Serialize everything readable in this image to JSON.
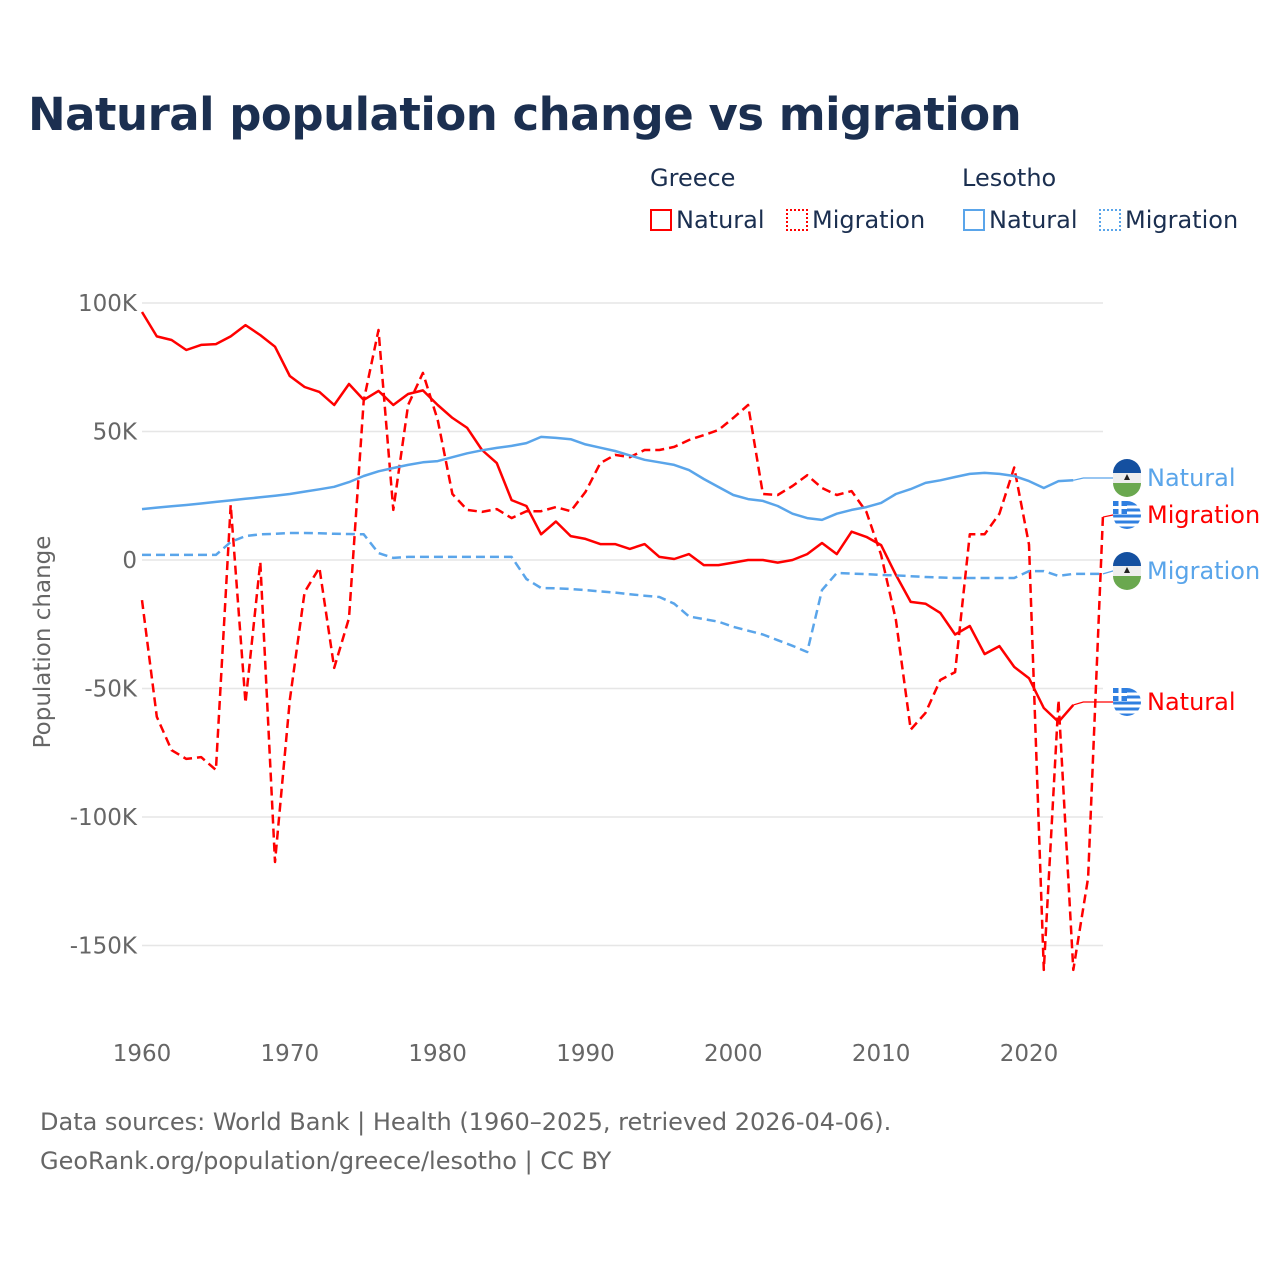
{
  "title": "Natural population change vs migration",
  "legend": {
    "groups": [
      {
        "name": "Greece",
        "items": [
          "Natural",
          "Migration"
        ],
        "color": "#ff0000"
      },
      {
        "name": "Lesotho",
        "items": [
          "Natural",
          "Migration"
        ],
        "color": "#5aa5ea"
      }
    ]
  },
  "footer": {
    "line1": "Data sources: World Bank | Health (1960–2025, retrieved 2026-04-06).",
    "line2": "GeoRank.org/population/greece/lesotho | CC BY"
  },
  "chart_data": {
    "type": "line",
    "title": "Natural population change vs migration",
    "xlabel": "",
    "ylabel": "Population change",
    "xlim": [
      1960,
      2025
    ],
    "ylim": [
      -160000,
      100000
    ],
    "x_ticks": [
      "1960",
      "1970",
      "1980",
      "1990",
      "2000",
      "2010",
      "2020"
    ],
    "y_ticks": [
      {
        "v": 100000,
        "label": "100K"
      },
      {
        "v": 50000,
        "label": "50K"
      },
      {
        "v": 0,
        "label": "0"
      },
      {
        "v": -50000,
        "label": "-50K"
      },
      {
        "v": -100000,
        "label": "-100K"
      },
      {
        "v": -150000,
        "label": "-150K"
      }
    ],
    "grid": true,
    "series": [
      {
        "name": "Greece Natural",
        "label": "Natural",
        "country": "Greece",
        "color": "#ff0000",
        "dashed": false,
        "start": 1960,
        "values": [
          96500,
          87000,
          85600,
          81700,
          83700,
          84000,
          87000,
          91400,
          87500,
          83000,
          71600,
          67300,
          65400,
          60300,
          68500,
          62300,
          65800,
          60300,
          64600,
          66000,
          60300,
          55300,
          51400,
          42800,
          37700,
          23300,
          21000,
          10000,
          15000,
          9300,
          8200,
          6200,
          6200,
          4300,
          6200,
          1200,
          400,
          2300,
          -2000,
          -2000,
          -1000,
          0,
          0,
          -1000,
          0,
          2300,
          6600,
          2300,
          11000,
          9000,
          5800,
          -5800,
          -16300,
          -17000,
          -20600,
          -29000,
          -25700,
          -36600,
          -33500,
          -41600,
          -46000,
          -57600,
          -63000,
          -56400
        ]
      },
      {
        "name": "Greece Migration",
        "label": "Migration",
        "country": "Greece",
        "color": "#ff0000",
        "dashed": true,
        "start": 1960,
        "values": [
          -15600,
          -61000,
          -74000,
          -77400,
          -76700,
          -81700,
          21400,
          -55600,
          -800,
          -117500,
          -54500,
          -12500,
          -3000,
          -42000,
          -22600,
          62000,
          89500,
          19500,
          60300,
          72800,
          54500,
          25700,
          19500,
          18700,
          19800,
          16300,
          19000,
          19000,
          20600,
          19000,
          26500,
          37700,
          40900,
          40000,
          42800,
          42800,
          44000,
          46700,
          48600,
          50600,
          55300,
          60300,
          25700,
          25300,
          28800,
          33000,
          28000,
          25300,
          26800,
          18700,
          2000,
          -23300,
          -66000,
          -59500,
          -46700,
          -43600,
          10000,
          10000,
          18000,
          36000,
          6000,
          -159500,
          -54500,
          -159500,
          -123700,
          16700
        ]
      },
      {
        "name": "Lesotho Natural",
        "label": "Natural",
        "country": "Lesotho",
        "color": "#5aa5ea",
        "dashed": false,
        "start": 1960,
        "values": [
          19800,
          20400,
          20900,
          21400,
          22000,
          22600,
          23200,
          23800,
          24400,
          25000,
          25700,
          26600,
          27500,
          28500,
          30300,
          32700,
          34500,
          35800,
          37000,
          38000,
          38500,
          40000,
          41500,
          42700,
          43600,
          44400,
          45500,
          47900,
          47500,
          47000,
          45000,
          43700,
          42400,
          40700,
          39000,
          38000,
          37000,
          35000,
          31500,
          28400,
          25300,
          23700,
          23000,
          21000,
          18000,
          16300,
          15600,
          18000,
          19500,
          20600,
          22200,
          25700,
          27600,
          30000,
          31000,
          32300,
          33500,
          33900,
          33500,
          32700,
          30700,
          28000,
          30700,
          31000
        ]
      },
      {
        "name": "Lesotho Migration",
        "label": "Migration",
        "country": "Lesotho",
        "color": "#5aa5ea",
        "dashed": true,
        "start": 1960,
        "values": [
          2000,
          2000,
          2000,
          2000,
          2000,
          2000,
          7000,
          9300,
          10000,
          10200,
          10500,
          10500,
          10400,
          10200,
          10100,
          10000,
          2700,
          800,
          1200,
          1200,
          1200,
          1200,
          1200,
          1200,
          1200,
          1200,
          -7400,
          -10900,
          -11000,
          -11300,
          -11700,
          -12200,
          -12700,
          -13300,
          -13900,
          -14400,
          -17000,
          -22000,
          -23000,
          -24000,
          -26000,
          -27500,
          -29000,
          -31200,
          -33400,
          -35800,
          -11700,
          -5000,
          -5300,
          -5500,
          -5800,
          -6000,
          -6300,
          -6600,
          -6800,
          -7000,
          -7000,
          -7000,
          -7000,
          -7000,
          -4300,
          -4300,
          -6200,
          -5400,
          -5400,
          -5400
        ]
      }
    ]
  }
}
